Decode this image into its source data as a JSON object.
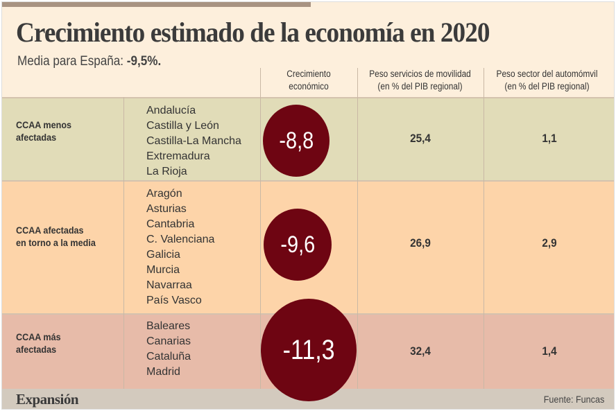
{
  "title": "Crecimiento estimado de la economía en 2020",
  "subtitle": {
    "label": "Media para España:",
    "value": "-9,5%."
  },
  "colors": {
    "circle": "#6e0512",
    "row_least": "#e1dcb8",
    "row_average": "#fdd4a9",
    "row_most": "#e7bba9",
    "background": "#fdefdc",
    "footer": "#d3cabe"
  },
  "chart_data": {
    "type": "table",
    "columns": [
      "Crecimiento económico",
      "Peso servicios de movilidad (en % del PIB regional)",
      "Peso sector del automómvil (en % del PIB regional)"
    ],
    "rows": [
      {
        "group": "CCAA menos afectadas",
        "regions": [
          "Andalucía",
          "Castilla y León",
          "Castilla-La Mancha",
          "Extremadura",
          "La Rioja"
        ],
        "growth": "-8,8",
        "mobility": "25,4",
        "auto": "1,1"
      },
      {
        "group": "CCAA afectadas en torno a la media",
        "regions": [
          "Aragón",
          "Asturias",
          "Cantabria",
          "C. Valenciana",
          "Galicia",
          "Murcia",
          "Navarraa",
          "País Vasco"
        ],
        "growth": "-9,6",
        "mobility": "26,9",
        "auto": "2,9"
      },
      {
        "group": "CCAA más afectadas",
        "regions": [
          "Baleares",
          "Canarias",
          "Cataluña",
          "Madrid"
        ],
        "growth": "-11,3",
        "mobility": "32,4",
        "auto": "1,4"
      }
    ]
  },
  "headers": {
    "growth": [
      "Crecimiento",
      "económico"
    ],
    "mobility": [
      "Peso servicios de movilidad",
      "(en % del PIB regional)"
    ],
    "auto": [
      "Peso sector del automómvil",
      "(en % del PIB regional)"
    ]
  },
  "groups": [
    [
      "CCAA menos",
      "afectadas"
    ],
    [
      "CCAA afectadas",
      "en torno a la media"
    ],
    [
      "CCAA más",
      "afectadas"
    ]
  ],
  "footer": {
    "logo": "Expansión",
    "source": "Fuente: Funcas"
  }
}
